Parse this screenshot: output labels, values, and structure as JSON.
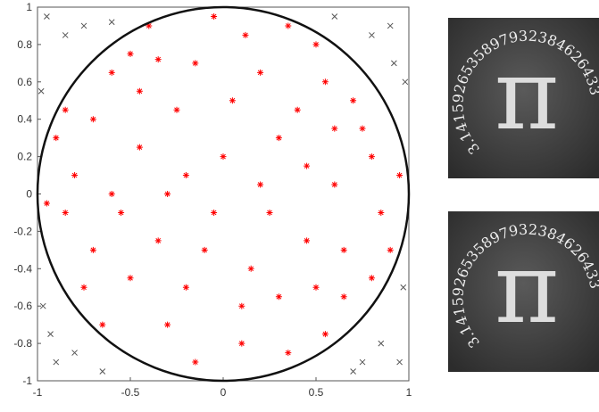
{
  "chart_data": {
    "type": "scatter",
    "xlim": [
      -1,
      1
    ],
    "ylim": [
      -1,
      1
    ],
    "xticks": [
      -1,
      -0.5,
      0,
      0.5,
      1
    ],
    "yticks": [
      -1,
      -0.8,
      -0.6,
      -0.4,
      -0.2,
      0,
      0.2,
      0.4,
      0.6,
      0.8,
      1
    ],
    "grid": false,
    "series": [
      {
        "color": "#ff0000",
        "marker": "star",
        "x": [
          0.12,
          -0.35,
          0.55,
          -0.7,
          0.3,
          -0.2,
          0.8,
          -0.85,
          0.45,
          -0.5,
          0.1,
          0.65,
          -0.15,
          0.35,
          -0.75,
          0.9,
          -0.9,
          0.05,
          -0.45,
          0.6,
          -0.1,
          0.25,
          -0.6,
          0.7,
          -0.3,
          0.5,
          -0.05,
          0.2,
          -0.55,
          0.4,
          -0.8,
          0.85,
          -0.25,
          0.15,
          -0.65,
          0.55,
          -0.4,
          0.75,
          -0.95,
          0.95,
          -0.35,
          0.3,
          0.0,
          -0.15,
          0.65,
          -0.7,
          0.45,
          -0.45,
          0.1,
          -0.2,
          0.8,
          -0.85,
          0.35,
          -0.6,
          0.2,
          -0.05,
          0.6,
          -0.3,
          0.5,
          -0.5
        ],
        "y": [
          0.85,
          0.72,
          0.6,
          0.4,
          0.3,
          0.1,
          0.2,
          -0.1,
          -0.25,
          -0.45,
          -0.6,
          -0.55,
          -0.9,
          -0.85,
          -0.5,
          -0.3,
          0.3,
          0.5,
          0.25,
          0.05,
          -0.3,
          -0.1,
          0.65,
          0.5,
          -0.7,
          0.8,
          0.95,
          0.65,
          -0.1,
          0.45,
          0.1,
          -0.1,
          0.45,
          -0.4,
          -0.7,
          -0.75,
          0.9,
          0.35,
          -0.05,
          0.1,
          -0.25,
          -0.55,
          0.2,
          0.7,
          -0.3,
          -0.3,
          0.15,
          0.55,
          -0.8,
          -0.5,
          -0.45,
          0.45,
          0.9,
          0.0,
          0.05,
          -0.1,
          0.35,
          0.0,
          -0.5,
          0.75
        ]
      },
      {
        "color": "#555555",
        "marker": "x",
        "x": [
          -0.95,
          0.9,
          -0.85,
          0.95,
          -0.9,
          0.8,
          -0.75,
          0.85,
          -0.8,
          0.98,
          -0.98,
          0.7,
          -0.65,
          0.6,
          -0.6,
          0.97,
          -0.97,
          0.92,
          -0.93,
          0.75
        ],
        "y": [
          0.95,
          0.9,
          0.85,
          -0.9,
          -0.9,
          0.85,
          0.9,
          -0.8,
          -0.85,
          0.6,
          0.55,
          -0.95,
          -0.95,
          0.95,
          0.92,
          -0.5,
          -0.6,
          0.7,
          -0.75,
          -0.9
        ]
      }
    ]
  },
  "images": [
    {
      "symbol": "π",
      "text": "3.1415926535897932384626433"
    },
    {
      "symbol": "π",
      "text": "3.1415926535897932384626433"
    }
  ]
}
